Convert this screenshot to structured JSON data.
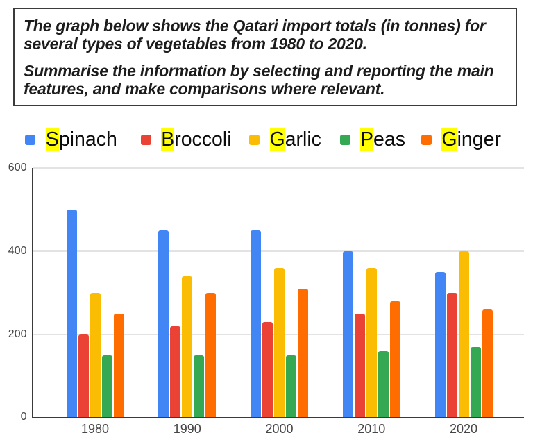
{
  "task": {
    "paragraph1": "The graph below shows the Qatari import totals (in tonnes) for several types of vegetables from 1980 to 2020.",
    "paragraph2": "Summarise the information by selecting and reporting the main features, and make comparisons where relevant."
  },
  "chart_data": {
    "type": "bar",
    "title": "",
    "xlabel": "",
    "ylabel": "",
    "categories": [
      "1980",
      "1990",
      "2000",
      "2010",
      "2020"
    ],
    "series": [
      {
        "name": "Spinach",
        "color": "#4285f4",
        "values": [
          500,
          450,
          450,
          400,
          350
        ]
      },
      {
        "name": "Broccoli",
        "color": "#ea4335",
        "values": [
          200,
          220,
          230,
          250,
          300
        ]
      },
      {
        "name": "Garlic",
        "color": "#fbbc04",
        "values": [
          300,
          340,
          360,
          360,
          400
        ]
      },
      {
        "name": "Peas",
        "color": "#34a853",
        "values": [
          150,
          150,
          150,
          160,
          170
        ]
      },
      {
        "name": "Ginger",
        "color": "#ff6d00",
        "values": [
          250,
          300,
          310,
          280,
          260
        ]
      }
    ],
    "ylim": [
      0,
      600
    ],
    "yticks": [
      0,
      200,
      400,
      600
    ],
    "grid": true,
    "legend_position": "top",
    "legend_first_letter_highlight": "#ffff00"
  }
}
